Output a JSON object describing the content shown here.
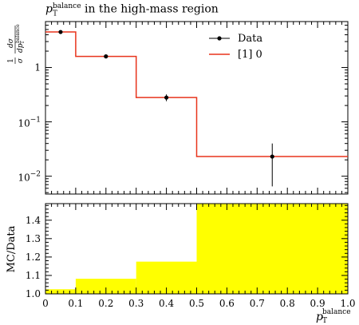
{
  "chart_data": {
    "type": "line",
    "title": {
      "symbol": "p",
      "sub": "T",
      "sup": "balance",
      "rest": " in the high-mass region"
    },
    "xlim": [
      0,
      1.0
    ],
    "upper": {
      "ylabel": {
        "numerator": "1",
        "sigma": "σ",
        "d_sigma": "dσ",
        "d_p": "dp",
        "sub": "T",
        "sup": "balance"
      },
      "yscale": "log",
      "ylim": [
        0.0047,
        7.0
      ],
      "y_ticks": [
        {
          "value": 1,
          "label": "1",
          "exp": ""
        },
        {
          "value": 0.1,
          "label": "10",
          "exp": "−1"
        },
        {
          "value": 0.01,
          "label": "10",
          "exp": "−2"
        }
      ],
      "series": [
        {
          "name": "Data",
          "kind": "points",
          "color": "#000000",
          "x": [
            0.05,
            0.2,
            0.4,
            0.75
          ],
          "y": [
            4.5,
            1.6,
            0.28,
            0.023
          ],
          "yerr_low": [
            4.3,
            1.53,
            0.24,
            0.0065
          ],
          "yerr_high": [
            4.7,
            1.67,
            0.32,
            0.04
          ]
        },
        {
          "name": "[1] 0",
          "kind": "step",
          "color": "#e8341c",
          "edges": [
            0,
            0.1,
            0.3,
            0.5,
            1.0
          ],
          "values": [
            4.5,
            1.6,
            0.28,
            0.023
          ]
        }
      ],
      "legend": "top-right"
    },
    "lower": {
      "ylabel": "MC/Data",
      "ylim": [
        1.0,
        1.49
      ],
      "y_ticks": [
        {
          "value": 1.0,
          "label": "1.0"
        },
        {
          "value": 1.1,
          "label": "1.1"
        },
        {
          "value": 1.2,
          "label": "1.2"
        },
        {
          "value": 1.3,
          "label": "1.3"
        },
        {
          "value": 1.4,
          "label": "1.4"
        }
      ],
      "band_color": "#ffff00",
      "band": {
        "edges": [
          0,
          0.1,
          0.3,
          0.5,
          1.0
        ],
        "values": [
          1.025,
          1.082,
          1.175,
          1.49
        ]
      },
      "x_ticks": [
        {
          "value": 0,
          "label": "0"
        },
        {
          "value": 0.1,
          "label": "0.1"
        },
        {
          "value": 0.2,
          "label": "0.2"
        },
        {
          "value": 0.3,
          "label": "0.3"
        },
        {
          "value": 0.4,
          "label": "0.4"
        },
        {
          "value": 0.5,
          "label": "0.5"
        },
        {
          "value": 0.6,
          "label": "0.6"
        },
        {
          "value": 0.7,
          "label": "0.7"
        },
        {
          "value": 0.8,
          "label": "0.8"
        },
        {
          "value": 0.9,
          "label": "0.9"
        },
        {
          "value": 1.0,
          "label": "1.0"
        }
      ],
      "xlabel": {
        "symbol": "p",
        "sub": "T",
        "sup": "balance"
      }
    }
  }
}
